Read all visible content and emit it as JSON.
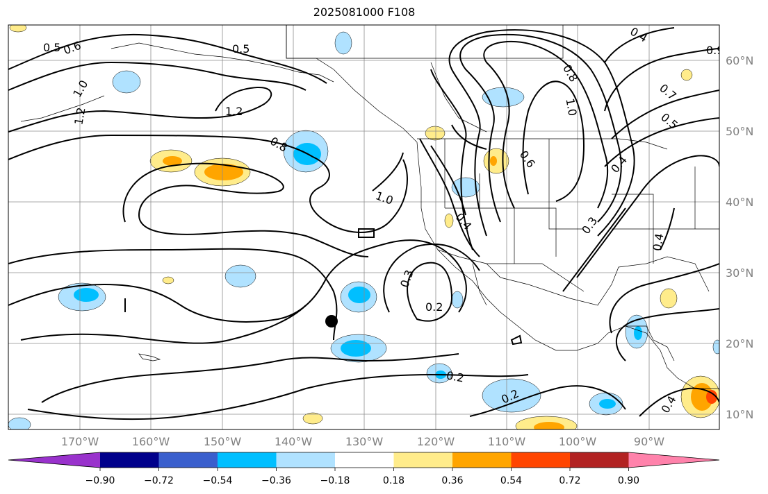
{
  "title": "2025081000 F108",
  "map": {
    "lon_labels": [
      "170°W",
      "160°W",
      "150°W",
      "140°W",
      "130°W",
      "120°W",
      "110°W",
      "100°W",
      "90°W"
    ],
    "lat_labels": [
      "60°N",
      "50°N",
      "40°N",
      "30°N",
      "20°N",
      "10°N"
    ],
    "contour_labels": [
      "0.5",
      "0.6",
      "0.5",
      "1.0",
      "1.2",
      "1.2",
      "0.8",
      "1.0",
      "0.4",
      "0.3",
      "0.2",
      "0.2",
      "0.2",
      "0.8",
      "1.0",
      "0.6",
      "0.4",
      "0.3",
      "0.7",
      "0.5",
      "0.4",
      "0.9",
      "0.4",
      "0.4"
    ],
    "marker": "storm-center-dot"
  },
  "colorbar": {
    "ticks": [
      "−0.90",
      "−0.72",
      "−0.54",
      "−0.36",
      "−0.18",
      "0.18",
      "0.36",
      "0.54",
      "0.72",
      "0.90"
    ],
    "colors": [
      "#9932cc",
      "#00008b",
      "#3a5fcd",
      "#00bfff",
      "#b0e2ff",
      "#ffffff",
      "#ffec8b",
      "#ffa500",
      "#ff4500",
      "#b22222",
      "#ff82ab"
    ]
  }
}
